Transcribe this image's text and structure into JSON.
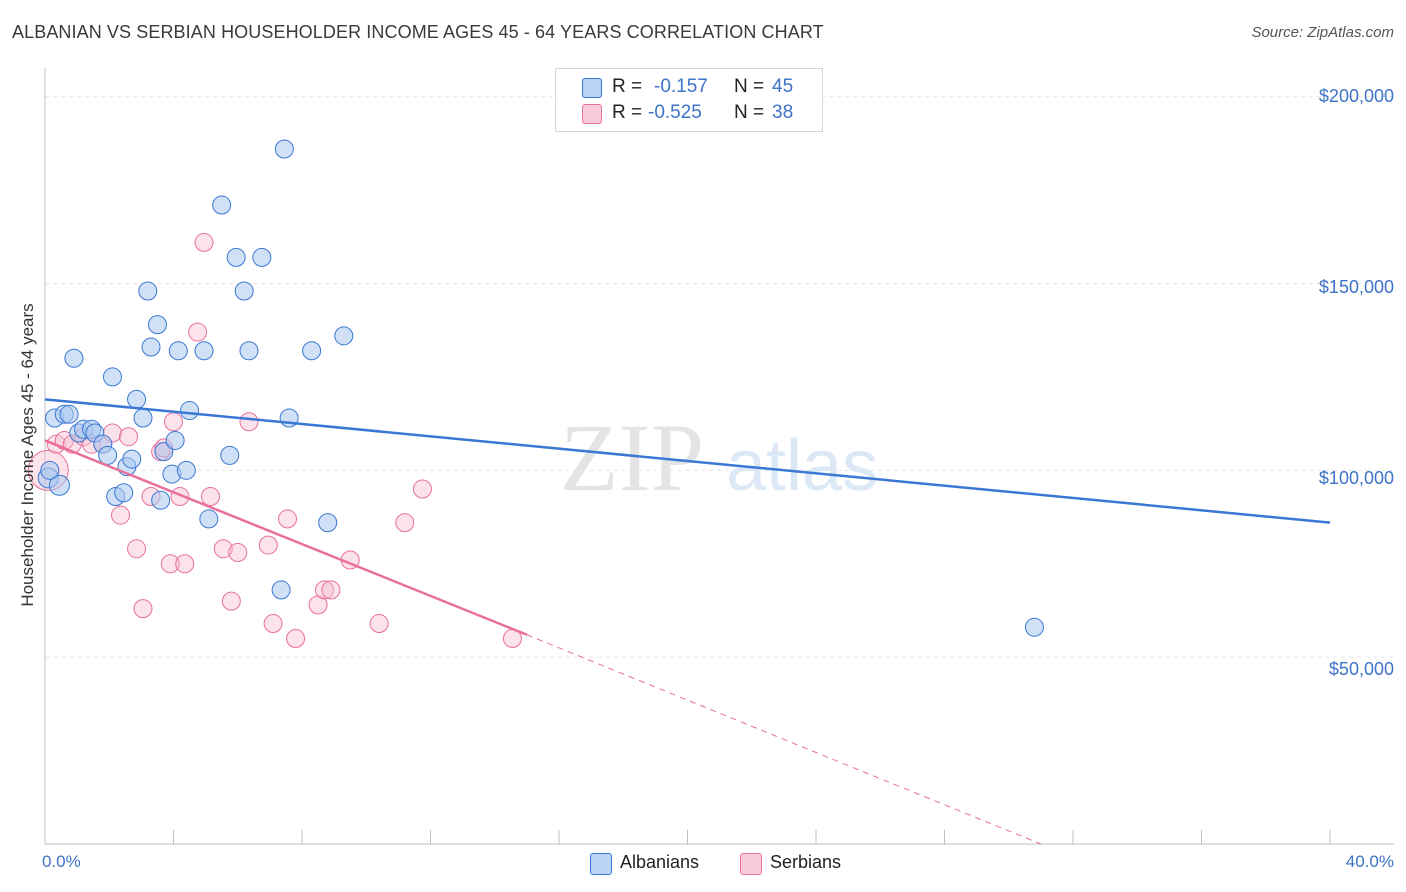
{
  "title": "ALBANIAN VS SERBIAN HOUSEHOLDER INCOME AGES 45 - 64 YEARS CORRELATION CHART",
  "source": "Source: ZipAtlas.com",
  "watermark": {
    "zip": "ZIP",
    "atlas": "atlas"
  },
  "colors": {
    "blue": "#3a78d4",
    "pink": "#e8709a",
    "blue_fill": "#a9c8f0",
    "pink_fill": "#f6bfd2",
    "axis_text": "#3e73c9"
  },
  "legend": {
    "rows": [
      {
        "r_label": "R =",
        "r_value": "-0.157",
        "n_label": "N =",
        "n_value": "45"
      },
      {
        "r_label": "R =",
        "r_value": "-0.525",
        "n_label": "N =",
        "n_value": "38"
      }
    ],
    "bottom": [
      "Albanians",
      "Serbians"
    ]
  },
  "chart_data": {
    "type": "scatter",
    "title": "ALBANIAN VS SERBIAN HOUSEHOLDER INCOME AGES 45 - 64 YEARS CORRELATION CHART",
    "xlabel": "",
    "ylabel": "Householder Income Ages 45 - 64 years",
    "xlim": [
      0,
      40
    ],
    "ylim": [
      0,
      205000
    ],
    "x_tick_labels": [
      "0.0%",
      "40.0%"
    ],
    "y_ticks": [
      50000,
      100000,
      150000,
      200000
    ],
    "y_tick_labels": [
      "$50,000",
      "$100,000",
      "$150,000",
      "$200,000"
    ],
    "series": [
      {
        "name": "Albanians",
        "r": -0.157,
        "n": 45,
        "trend": {
          "x": [
            0,
            40
          ],
          "y": [
            119000,
            86000
          ]
        },
        "points": [
          [
            0.1,
            98000,
            10
          ],
          [
            0.45,
            96000,
            10
          ],
          [
            0.3,
            114000,
            9
          ],
          [
            0.6,
            115000,
            9
          ],
          [
            0.75,
            115000,
            9
          ],
          [
            0.9,
            130000,
            9
          ],
          [
            1.05,
            110000,
            9
          ],
          [
            1.2,
            111000,
            9
          ],
          [
            1.45,
            111000,
            9
          ],
          [
            1.55,
            110000,
            9
          ],
          [
            1.8,
            107000,
            9
          ],
          [
            1.95,
            104000,
            9
          ],
          [
            2.1,
            125000,
            9
          ],
          [
            2.2,
            93000,
            9
          ],
          [
            2.45,
            94000,
            9
          ],
          [
            2.55,
            101000,
            9
          ],
          [
            2.7,
            103000,
            9
          ],
          [
            2.85,
            119000,
            9
          ],
          [
            3.05,
            114000,
            9
          ],
          [
            3.2,
            148000,
            9
          ],
          [
            3.3,
            133000,
            9
          ],
          [
            3.5,
            139000,
            9
          ],
          [
            3.6,
            92000,
            9
          ],
          [
            3.7,
            105000,
            9
          ],
          [
            3.95,
            99000,
            9
          ],
          [
            4.05,
            108000,
            9
          ],
          [
            4.15,
            132000,
            9
          ],
          [
            4.4,
            100000,
            9
          ],
          [
            4.5,
            116000,
            9
          ],
          [
            4.95,
            132000,
            9
          ],
          [
            5.1,
            87000,
            9
          ],
          [
            5.5,
            171000,
            9
          ],
          [
            5.75,
            104000,
            9
          ],
          [
            5.95,
            157000,
            9
          ],
          [
            6.2,
            148000,
            9
          ],
          [
            6.35,
            132000,
            9
          ],
          [
            6.75,
            157000,
            9
          ],
          [
            7.35,
            68000,
            9
          ],
          [
            7.45,
            186000,
            9
          ],
          [
            7.6,
            114000,
            9
          ],
          [
            8.3,
            132000,
            9
          ],
          [
            8.8,
            86000,
            9
          ],
          [
            9.3,
            136000,
            9
          ],
          [
            30.8,
            58000,
            9
          ],
          [
            0.15,
            100000,
            9
          ]
        ]
      },
      {
        "name": "Serbians",
        "r": -0.525,
        "n": 38,
        "trend": {
          "x": [
            0,
            15
          ],
          "y": [
            108000,
            56000
          ]
        },
        "trend_ext": {
          "x": [
            15,
            31
          ],
          "y": [
            56000,
            0
          ]
        },
        "points": [
          [
            0.1,
            100000,
            20
          ],
          [
            0.35,
            107000,
            9
          ],
          [
            0.6,
            108000,
            9
          ],
          [
            0.85,
            107000,
            9
          ],
          [
            1.2,
            109000,
            9
          ],
          [
            1.45,
            107000,
            9
          ],
          [
            1.8,
            107000,
            9
          ],
          [
            2.1,
            110000,
            9
          ],
          [
            2.35,
            88000,
            9
          ],
          [
            2.6,
            109000,
            9
          ],
          [
            2.85,
            79000,
            9
          ],
          [
            3.05,
            63000,
            9
          ],
          [
            3.3,
            93000,
            9
          ],
          [
            3.6,
            105000,
            9
          ],
          [
            3.9,
            75000,
            9
          ],
          [
            4.0,
            113000,
            9
          ],
          [
            4.2,
            93000,
            9
          ],
          [
            4.35,
            75000,
            9
          ],
          [
            4.75,
            137000,
            9
          ],
          [
            4.95,
            161000,
            9
          ],
          [
            5.15,
            93000,
            9
          ],
          [
            5.55,
            79000,
            9
          ],
          [
            5.8,
            65000,
            9
          ],
          [
            6.0,
            78000,
            9
          ],
          [
            6.35,
            113000,
            9
          ],
          [
            6.95,
            80000,
            9
          ],
          [
            7.1,
            59000,
            9
          ],
          [
            7.55,
            87000,
            9
          ],
          [
            7.8,
            55000,
            9
          ],
          [
            8.5,
            64000,
            9
          ],
          [
            8.7,
            68000,
            9
          ],
          [
            8.9,
            68000,
            9
          ],
          [
            9.5,
            76000,
            9
          ],
          [
            10.4,
            59000,
            9
          ],
          [
            11.2,
            86000,
            9
          ],
          [
            11.75,
            95000,
            9
          ],
          [
            14.55,
            55000,
            9
          ],
          [
            3.7,
            106000,
            9
          ]
        ]
      }
    ]
  }
}
